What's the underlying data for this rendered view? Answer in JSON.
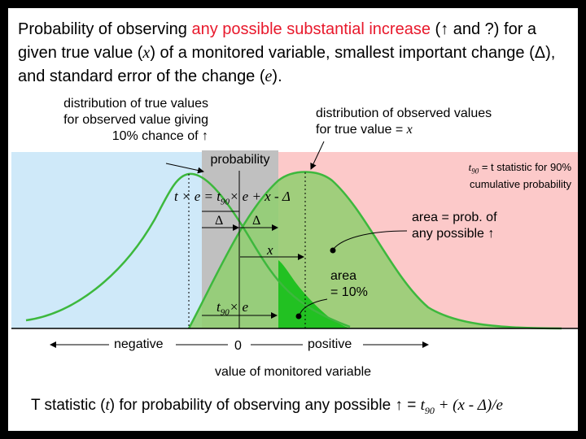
{
  "title": {
    "part1": "Probability of observing ",
    "highlight": "any possible substantial increase",
    "part2": " (",
    "arrow": "↑",
    "part3": " and ?) for a given true value (",
    "x": "x",
    "part4": ") of a monitored variable, smallest important change (",
    "delta": "Δ",
    "part5": "), and standard error of the change (",
    "e": "e",
    "part6": ")."
  },
  "labels": {
    "true_dist_line1": "distribution of true values",
    "true_dist_line2": "for observed value giving",
    "true_dist_line3": "10% chance of",
    "up_arrow": "↑",
    "observed_dist_line1": "distribution of observed values",
    "observed_dist_line2_pre": "for true value = ",
    "observed_dist_x": "x",
    "probability": "probability",
    "t90_sym": "t",
    "t90_sub": "90",
    "t90_def_line1": " = t statistic for 90%",
    "t90_def_line2": "cumulative probability",
    "equation": "t × e = t",
    "equation_sub": "90",
    "equation_rest": "× e + x - Δ",
    "delta_left": "Δ",
    "delta_right": "Δ",
    "x_label": "x",
    "t90e_t": "t",
    "t90e_sub": "90",
    "t90e_rest": "× e",
    "area_prob_line1": "area = prob. of",
    "area_prob_line2": "any possible",
    "area10_line1": "area",
    "area10_line2": "= 10%",
    "negative": "negative",
    "zero": "0",
    "positive": "positive",
    "axis_title": "value of monitored variable"
  },
  "bottom": {
    "part1": "T statistic (",
    "t": "t",
    "part2": ") for probability of observing any possible ",
    "arrow": "↑",
    "part3": " = ",
    "formula": "t",
    "formula_sub": "90",
    "formula_rest": " + (x - Δ)/e"
  },
  "colors": {
    "negative_region": "#cfe9f9",
    "positive_region": "#fcc9c9",
    "probability_band": "#c0c0c0",
    "curve": "#3db83d",
    "observed_fill": "#8fcf6f",
    "tail_fill": "#22c122",
    "highlight_text": "#e8192c"
  }
}
